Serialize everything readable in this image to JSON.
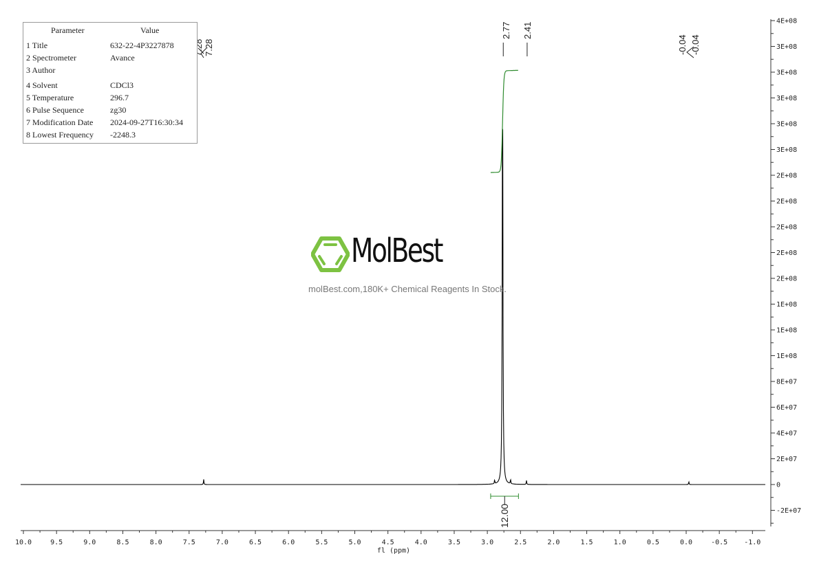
{
  "parameters": {
    "header": [
      "Parameter",
      "Value"
    ],
    "rows": [
      {
        "label": "1 Title",
        "value": "632-22-4P3227878"
      },
      {
        "label": "2 Spectrometer",
        "value": "Avance"
      },
      {
        "label": "3 Author",
        "value": ""
      },
      {
        "label": "4 Solvent",
        "value": "CDCl3"
      },
      {
        "label": "5 Temperature",
        "value": "296.7"
      },
      {
        "label": "6 Pulse Sequence",
        "value": "zg30"
      },
      {
        "label": "7 Modification Date",
        "value": "2024-09-27T16:30:34"
      },
      {
        "label": "8 Lowest Frequency",
        "value": "-2248.3"
      }
    ]
  },
  "watermark": {
    "logo": "MolBest",
    "tagline": "molBest.com,180K+ Chemical Reagents In Stock.",
    "logo_color": "#7dc242"
  },
  "chart_data": {
    "type": "line",
    "subtype": "1H NMR spectrum",
    "xlabel": "fl (ppm)",
    "xlim": [
      10.0,
      -1.0
    ],
    "x_ticks": [
      "10.0",
      "9.5",
      "9.0",
      "8.5",
      "8.0",
      "7.5",
      "7.0",
      "6.5",
      "6.0",
      "5.5",
      "5.0",
      "4.5",
      "4.0",
      "3.5",
      "3.0",
      "2.5",
      "2.0",
      "1.5",
      "1.0",
      "0.5",
      "0.0",
      "-0.5",
      "-1.0"
    ],
    "ylim": [
      -22000000.0,
      396000000.0
    ],
    "y_axis_position": "right",
    "y_ticks": [
      "4E+08",
      "3E+08",
      "3E+08",
      "3E+08",
      "3E+08",
      "3E+08",
      "2E+08",
      "2E+08",
      "2E+08",
      "2E+08",
      "2E+08",
      "1E+08",
      "1E+08",
      "1E+08",
      "8E+07",
      "6E+07",
      "4E+07",
      "2E+07",
      "0",
      "-2E+07"
    ],
    "line_color": "#000000",
    "integral_color": "#2e8b2e",
    "peaks": [
      {
        "ppm": 7.28,
        "intensity": 4500000.0
      },
      {
        "ppm": 2.89,
        "intensity": 3500000.0
      },
      {
        "ppm": 2.77,
        "intensity": 360000000.0
      },
      {
        "ppm": 2.65,
        "intensity": 4000000.0
      },
      {
        "ppm": 2.41,
        "intensity": 3500000.0
      },
      {
        "ppm": -0.04,
        "intensity": 2500000.0
      }
    ],
    "peak_labels": [
      {
        "ppm": 7.29,
        "text": "7.28"
      },
      {
        "ppm": 7.28,
        "text": "7.28"
      },
      {
        "ppm": 2.77,
        "text": "2.77"
      },
      {
        "ppm": 2.41,
        "text": "2.41"
      },
      {
        "ppm": -0.03,
        "text": "-0.04"
      },
      {
        "ppm": -0.04,
        "text": "-0.04"
      }
    ],
    "integrals": [
      {
        "from": 2.95,
        "to": 2.53,
        "value": "12.00"
      }
    ],
    "grid": false
  }
}
